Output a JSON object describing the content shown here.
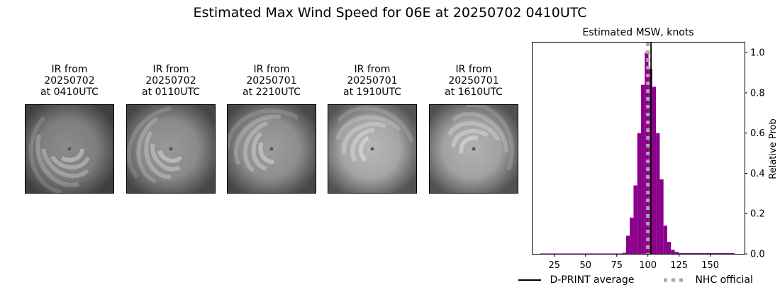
{
  "figure": {
    "title": "Estimated Max Wind Speed for 06E at 20250702 0410UTC"
  },
  "ir_panels": [
    {
      "caption": "IR from\n20250702\nat 0410UTC",
      "brightness": 0.55
    },
    {
      "caption": "IR from\n20250702\nat 0110UTC",
      "brightness": 0.6
    },
    {
      "caption": "IR from\n20250701\nat 2210UTC",
      "brightness": 0.62
    },
    {
      "caption": "IR from\n20250701\nat 1910UTC",
      "brightness": 0.72
    },
    {
      "caption": "IR from\n20250701\nat 1610UTC",
      "brightness": 0.7
    }
  ],
  "chart_data": {
    "type": "bar",
    "title": "Estimated MSW, knots",
    "xlabel": "",
    "ylabel": "Relative Prob",
    "xlim": [
      7.5,
      177.5
    ],
    "ylim": [
      0,
      1.05
    ],
    "x_ticks": [
      25,
      50,
      75,
      100,
      125,
      150
    ],
    "y_ticks": [
      0.0,
      0.2,
      0.4,
      0.6,
      0.8,
      1.0
    ],
    "y_tick_labels": [
      "0.0",
      "0.2",
      "0.4",
      "0.6",
      "0.8",
      "1.0"
    ],
    "y_axis_side": "right",
    "bar_width": 3,
    "bar_color": "#8b008b",
    "x": [
      15,
      18,
      21,
      24,
      27,
      30,
      33,
      36,
      39,
      42,
      45,
      48,
      51,
      54,
      57,
      60,
      63,
      66,
      69,
      72,
      75,
      78,
      81,
      84,
      87,
      90,
      93,
      96,
      99,
      102,
      105,
      108,
      111,
      114,
      117,
      120,
      123,
      126,
      129,
      132,
      135,
      138,
      141,
      144,
      147,
      150,
      153,
      156,
      159,
      162,
      165,
      168
    ],
    "values": [
      0.002,
      0.002,
      0.002,
      0.002,
      0.002,
      0.002,
      0.002,
      0.002,
      0.002,
      0.002,
      0.002,
      0.002,
      0.002,
      0.002,
      0.002,
      0.002,
      0.002,
      0.002,
      0.002,
      0.002,
      0.002,
      0.002,
      0.005,
      0.09,
      0.18,
      0.34,
      0.6,
      0.84,
      1.0,
      0.92,
      0.83,
      0.6,
      0.37,
      0.14,
      0.06,
      0.02,
      0.01,
      0.004,
      0.004,
      0.004,
      0.004,
      0.004,
      0.004,
      0.004,
      0.004,
      0.004,
      0.004,
      0.004,
      0.004,
      0.004,
      0.004,
      0.004
    ],
    "dprint_average": 102.5,
    "nhc_official": 100,
    "legend": [
      {
        "label": "D-PRINT average",
        "style": "solid",
        "color": "#000000"
      },
      {
        "label": "NHC official",
        "style": "dotted",
        "color": "#a9a9a9"
      }
    ],
    "legend_placement": "bottom"
  }
}
